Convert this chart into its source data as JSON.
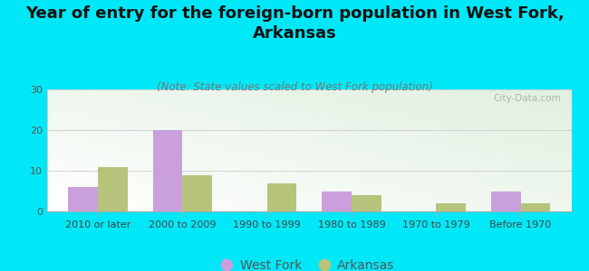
{
  "title": "Year of entry for the foreign-born population in West Fork,\nArkansas",
  "subtitle": "(Note: State values scaled to West Fork population)",
  "categories": [
    "2010 or later",
    "2000 to 2009",
    "1990 to 1999",
    "1980 to 1989",
    "1970 to 1979",
    "Before 1970"
  ],
  "west_fork": [
    6,
    20,
    0,
    5,
    0,
    5
  ],
  "arkansas": [
    11,
    9,
    7,
    4,
    2,
    2
  ],
  "west_fork_color": "#c9a0dc",
  "arkansas_color": "#b5c47a",
  "background_color": "#00e8f8",
  "ylim": [
    0,
    30
  ],
  "yticks": [
    0,
    10,
    20,
    30
  ],
  "bar_width": 0.35,
  "watermark": "City-Data.com",
  "legend_west_fork": "West Fork",
  "legend_arkansas": "Arkansas",
  "title_fontsize": 13,
  "subtitle_fontsize": 8.5,
  "tick_fontsize": 8,
  "legend_fontsize": 10
}
